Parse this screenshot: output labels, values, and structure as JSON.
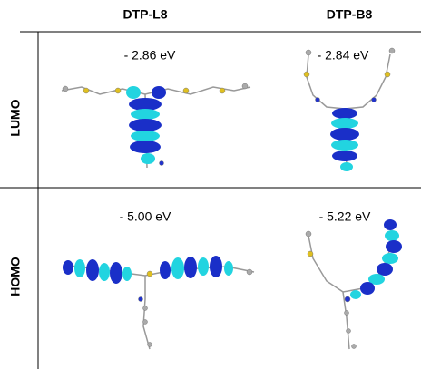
{
  "table": {
    "columns": [
      "DTP-L8",
      "DTP-B8"
    ],
    "rows": [
      {
        "label": "LUMO",
        "cells": [
          "- 2.86 eV",
          "- 2.84 eV"
        ]
      },
      {
        "label": "HOMO",
        "cells": [
          "- 5.00 eV",
          "- 5.22 eV"
        ]
      }
    ]
  }
}
